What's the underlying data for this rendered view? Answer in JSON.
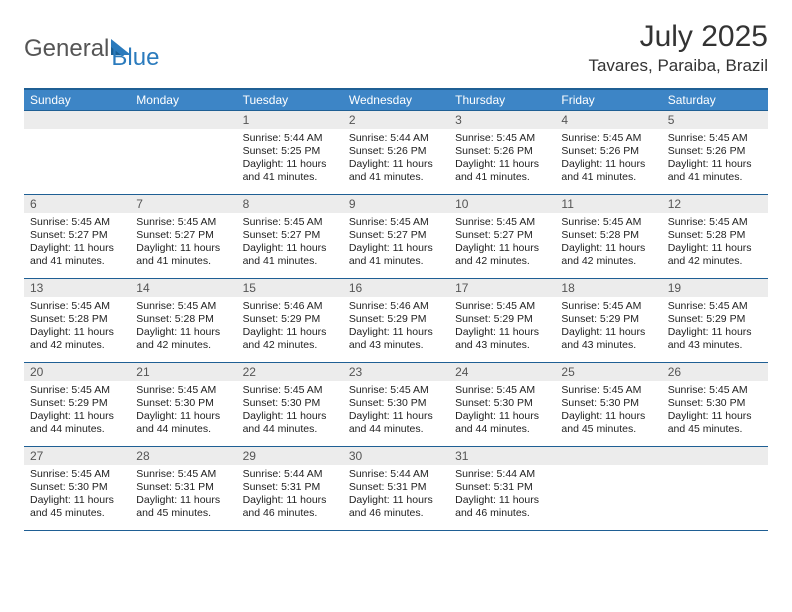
{
  "logo": {
    "text1": "General",
    "text2": "Blue"
  },
  "title": "July 2025",
  "subtitle": "Tavares, Paraiba, Brazil",
  "colors": {
    "header_bg": "#3d85c6",
    "header_border": "#1f5f94",
    "daynum_bg": "#ececec",
    "logo_blue": "#2b7bbd"
  },
  "weekdays": [
    "Sunday",
    "Monday",
    "Tuesday",
    "Wednesday",
    "Thursday",
    "Friday",
    "Saturday"
  ],
  "grid": [
    [
      null,
      null,
      {
        "n": "1",
        "sr": "Sunrise: 5:44 AM",
        "ss": "Sunset: 5:25 PM",
        "d1": "Daylight: 11 hours",
        "d2": "and 41 minutes."
      },
      {
        "n": "2",
        "sr": "Sunrise: 5:44 AM",
        "ss": "Sunset: 5:26 PM",
        "d1": "Daylight: 11 hours",
        "d2": "and 41 minutes."
      },
      {
        "n": "3",
        "sr": "Sunrise: 5:45 AM",
        "ss": "Sunset: 5:26 PM",
        "d1": "Daylight: 11 hours",
        "d2": "and 41 minutes."
      },
      {
        "n": "4",
        "sr": "Sunrise: 5:45 AM",
        "ss": "Sunset: 5:26 PM",
        "d1": "Daylight: 11 hours",
        "d2": "and 41 minutes."
      },
      {
        "n": "5",
        "sr": "Sunrise: 5:45 AM",
        "ss": "Sunset: 5:26 PM",
        "d1": "Daylight: 11 hours",
        "d2": "and 41 minutes."
      }
    ],
    [
      {
        "n": "6",
        "sr": "Sunrise: 5:45 AM",
        "ss": "Sunset: 5:27 PM",
        "d1": "Daylight: 11 hours",
        "d2": "and 41 minutes."
      },
      {
        "n": "7",
        "sr": "Sunrise: 5:45 AM",
        "ss": "Sunset: 5:27 PM",
        "d1": "Daylight: 11 hours",
        "d2": "and 41 minutes."
      },
      {
        "n": "8",
        "sr": "Sunrise: 5:45 AM",
        "ss": "Sunset: 5:27 PM",
        "d1": "Daylight: 11 hours",
        "d2": "and 41 minutes."
      },
      {
        "n": "9",
        "sr": "Sunrise: 5:45 AM",
        "ss": "Sunset: 5:27 PM",
        "d1": "Daylight: 11 hours",
        "d2": "and 41 minutes."
      },
      {
        "n": "10",
        "sr": "Sunrise: 5:45 AM",
        "ss": "Sunset: 5:27 PM",
        "d1": "Daylight: 11 hours",
        "d2": "and 42 minutes."
      },
      {
        "n": "11",
        "sr": "Sunrise: 5:45 AM",
        "ss": "Sunset: 5:28 PM",
        "d1": "Daylight: 11 hours",
        "d2": "and 42 minutes."
      },
      {
        "n": "12",
        "sr": "Sunrise: 5:45 AM",
        "ss": "Sunset: 5:28 PM",
        "d1": "Daylight: 11 hours",
        "d2": "and 42 minutes."
      }
    ],
    [
      {
        "n": "13",
        "sr": "Sunrise: 5:45 AM",
        "ss": "Sunset: 5:28 PM",
        "d1": "Daylight: 11 hours",
        "d2": "and 42 minutes."
      },
      {
        "n": "14",
        "sr": "Sunrise: 5:45 AM",
        "ss": "Sunset: 5:28 PM",
        "d1": "Daylight: 11 hours",
        "d2": "and 42 minutes."
      },
      {
        "n": "15",
        "sr": "Sunrise: 5:46 AM",
        "ss": "Sunset: 5:29 PM",
        "d1": "Daylight: 11 hours",
        "d2": "and 42 minutes."
      },
      {
        "n": "16",
        "sr": "Sunrise: 5:46 AM",
        "ss": "Sunset: 5:29 PM",
        "d1": "Daylight: 11 hours",
        "d2": "and 43 minutes."
      },
      {
        "n": "17",
        "sr": "Sunrise: 5:45 AM",
        "ss": "Sunset: 5:29 PM",
        "d1": "Daylight: 11 hours",
        "d2": "and 43 minutes."
      },
      {
        "n": "18",
        "sr": "Sunrise: 5:45 AM",
        "ss": "Sunset: 5:29 PM",
        "d1": "Daylight: 11 hours",
        "d2": "and 43 minutes."
      },
      {
        "n": "19",
        "sr": "Sunrise: 5:45 AM",
        "ss": "Sunset: 5:29 PM",
        "d1": "Daylight: 11 hours",
        "d2": "and 43 minutes."
      }
    ],
    [
      {
        "n": "20",
        "sr": "Sunrise: 5:45 AM",
        "ss": "Sunset: 5:29 PM",
        "d1": "Daylight: 11 hours",
        "d2": "and 44 minutes."
      },
      {
        "n": "21",
        "sr": "Sunrise: 5:45 AM",
        "ss": "Sunset: 5:30 PM",
        "d1": "Daylight: 11 hours",
        "d2": "and 44 minutes."
      },
      {
        "n": "22",
        "sr": "Sunrise: 5:45 AM",
        "ss": "Sunset: 5:30 PM",
        "d1": "Daylight: 11 hours",
        "d2": "and 44 minutes."
      },
      {
        "n": "23",
        "sr": "Sunrise: 5:45 AM",
        "ss": "Sunset: 5:30 PM",
        "d1": "Daylight: 11 hours",
        "d2": "and 44 minutes."
      },
      {
        "n": "24",
        "sr": "Sunrise: 5:45 AM",
        "ss": "Sunset: 5:30 PM",
        "d1": "Daylight: 11 hours",
        "d2": "and 44 minutes."
      },
      {
        "n": "25",
        "sr": "Sunrise: 5:45 AM",
        "ss": "Sunset: 5:30 PM",
        "d1": "Daylight: 11 hours",
        "d2": "and 45 minutes."
      },
      {
        "n": "26",
        "sr": "Sunrise: 5:45 AM",
        "ss": "Sunset: 5:30 PM",
        "d1": "Daylight: 11 hours",
        "d2": "and 45 minutes."
      }
    ],
    [
      {
        "n": "27",
        "sr": "Sunrise: 5:45 AM",
        "ss": "Sunset: 5:30 PM",
        "d1": "Daylight: 11 hours",
        "d2": "and 45 minutes."
      },
      {
        "n": "28",
        "sr": "Sunrise: 5:45 AM",
        "ss": "Sunset: 5:31 PM",
        "d1": "Daylight: 11 hours",
        "d2": "and 45 minutes."
      },
      {
        "n": "29",
        "sr": "Sunrise: 5:44 AM",
        "ss": "Sunset: 5:31 PM",
        "d1": "Daylight: 11 hours",
        "d2": "and 46 minutes."
      },
      {
        "n": "30",
        "sr": "Sunrise: 5:44 AM",
        "ss": "Sunset: 5:31 PM",
        "d1": "Daylight: 11 hours",
        "d2": "and 46 minutes."
      },
      {
        "n": "31",
        "sr": "Sunrise: 5:44 AM",
        "ss": "Sunset: 5:31 PM",
        "d1": "Daylight: 11 hours",
        "d2": "and 46 minutes."
      },
      null,
      null
    ]
  ]
}
